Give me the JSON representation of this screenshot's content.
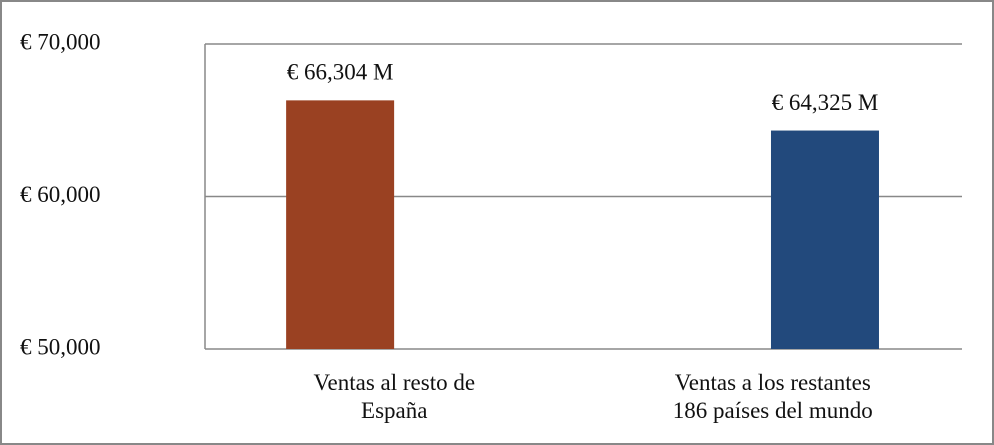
{
  "chart_data": {
    "type": "bar",
    "categories": [
      "Ventas al resto de\nEspaña",
      "Ventas a los restantes\n186 países del mundo"
    ],
    "values": [
      66304,
      64325
    ],
    "value_labels": [
      "€ 66,304 M",
      "€ 64,325 M"
    ],
    "colors": [
      "#9a4122",
      "#22497c"
    ],
    "ylim": [
      50000,
      70000
    ],
    "yticks": [
      {
        "value": 50000,
        "label": "€ 50,000"
      },
      {
        "value": 60000,
        "label": "€ 60,000"
      },
      {
        "value": 70000,
        "label": "€ 70,000"
      }
    ],
    "grid": true
  }
}
